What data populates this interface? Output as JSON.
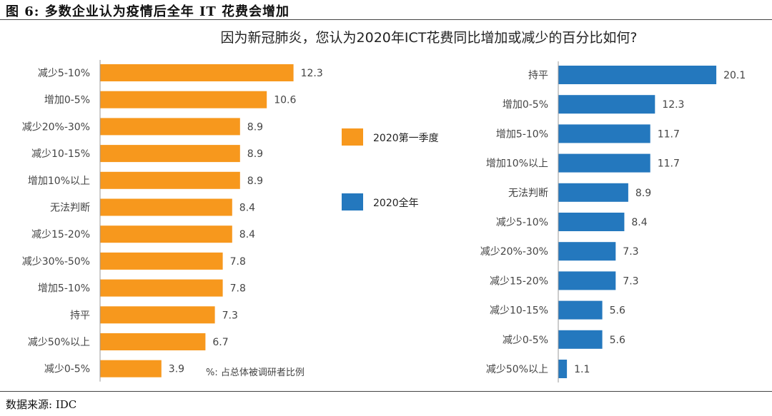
{
  "figure_title": "图 6: 多数企业认为疫情后全年 IT 花费会增加",
  "source": "数据来源: IDC",
  "note": "%: 占总体被调研者比例",
  "colors": {
    "q1": "#F7981D",
    "year": "#2478BE"
  },
  "chart_data": {
    "type": "bar",
    "title": "因为新冠肺炎，您认为2020年ICT花费同比增加或减少的百分比如何?",
    "panels": [
      {
        "series_name": "2020第一季度",
        "color": "#F7981D",
        "categories": [
          "减少5-10%",
          "增加0-5%",
          "减少20%-30%",
          "减少10-15%",
          "增加10%以上",
          "无法判断",
          "减少15-20%",
          "减少30%-50%",
          "增加5-10%",
          "持平",
          "减少50%以上",
          "减少0-5%"
        ],
        "values": [
          12.3,
          10.6,
          8.9,
          8.9,
          8.9,
          8.4,
          8.4,
          7.8,
          7.8,
          7.3,
          6.7,
          3.9
        ]
      },
      {
        "series_name": "2020全年",
        "color": "#2478BE",
        "categories": [
          "持平",
          "增加0-5%",
          "增加5-10%",
          "增加10%以上",
          "无法判断",
          "减少5-10%",
          "减少20%-30%",
          "减少15-20%",
          "减少10-15%",
          "减少0-5%",
          "减少50%以上"
        ],
        "values": [
          20.1,
          12.3,
          11.7,
          11.7,
          8.9,
          8.4,
          7.3,
          7.3,
          5.6,
          5.6,
          1.1
        ]
      }
    ],
    "legend": [
      "2020第一季度",
      "2020全年"
    ],
    "legend_position": "center",
    "grid": false
  }
}
